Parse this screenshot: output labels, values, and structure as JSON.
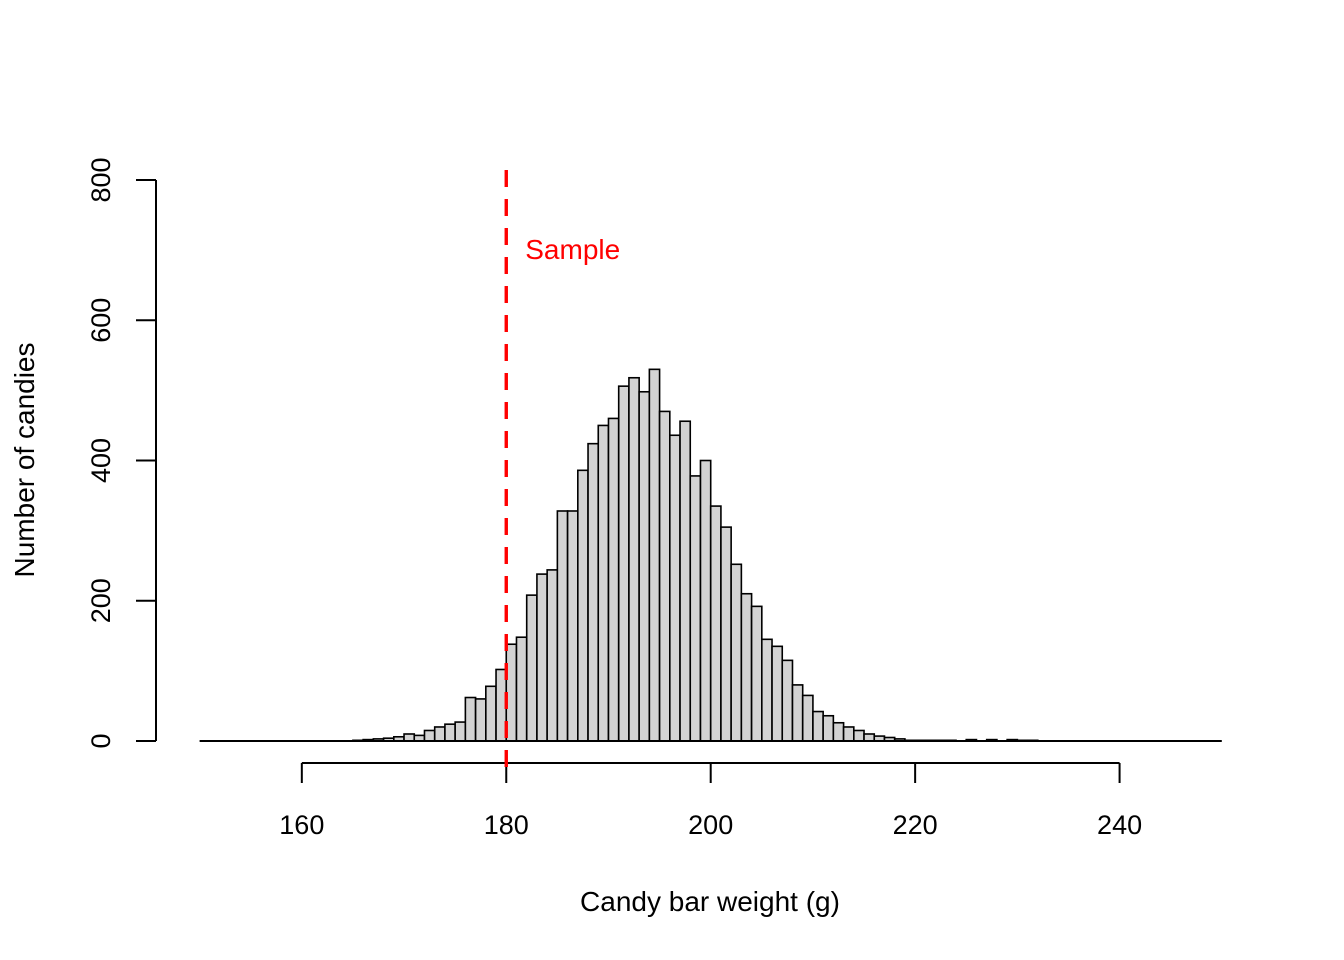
{
  "chart_data": {
    "type": "bar",
    "title": "",
    "xlabel": "Candy bar weight (g)",
    "ylabel": "Number of candies",
    "xlim": [
      150,
      250
    ],
    "ylim": [
      0,
      800
    ],
    "x_ticks": [
      "160",
      "180",
      "200",
      "220",
      "240"
    ],
    "y_ticks": [
      "0",
      "200",
      "400",
      "600",
      "800"
    ],
    "bin_width": 1,
    "bin_start": 150,
    "counts": [
      0,
      0,
      0,
      0,
      0,
      0,
      0,
      0,
      0,
      0,
      0,
      0,
      0,
      0,
      0,
      1,
      2,
      3,
      4,
      6,
      10,
      8,
      15,
      20,
      24,
      27,
      62,
      60,
      78,
      102,
      138,
      148,
      208,
      238,
      244,
      328,
      328,
      386,
      424,
      450,
      460,
      506,
      518,
      498,
      530,
      470,
      436,
      456,
      378,
      400,
      335,
      305,
      252,
      210,
      192,
      145,
      135,
      115,
      80,
      65,
      42,
      36,
      26,
      20,
      15,
      10,
      7,
      5,
      3,
      1,
      1,
      1,
      1,
      1,
      0,
      2,
      0,
      2,
      0,
      2,
      1,
      1,
      0,
      0,
      0,
      0,
      0,
      0,
      0,
      0,
      0,
      0,
      0,
      0,
      0,
      0,
      0,
      0,
      0,
      0
    ],
    "annotations": [
      {
        "label": "Sample",
        "x": 180,
        "color": "#ff0000",
        "style": "dashed vertical line"
      }
    ],
    "bar_fill": "#d3d3d3",
    "bar_stroke": "#000000",
    "grid": false,
    "legend": "none"
  }
}
